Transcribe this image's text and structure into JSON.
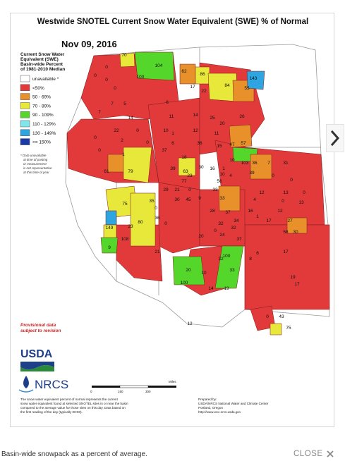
{
  "map": {
    "title": "Westwide SNOTEL Current Snow Water Equivalent (SWE) % of Normal",
    "date": "Nov 09, 2016",
    "legend": {
      "title_lines": [
        "Current Snow Water",
        "Equivalent (SWE)",
        "Basin-wide Percent",
        "of 1981-2010 Median"
      ],
      "items": [
        {
          "label": "unavailable *",
          "color": "#ffffff"
        },
        {
          "label": "<50%",
          "color": "#e23a3a"
        },
        {
          "label": "50 - 69%",
          "color": "#e8902a"
        },
        {
          "label": "70 - 89%",
          "color": "#e8e83a"
        },
        {
          "label": "90 - 109%",
          "color": "#55d62a"
        },
        {
          "label": "110 - 129%",
          "color": "#7fe6ea"
        },
        {
          "label": "130 - 149%",
          "color": "#2ea4e0"
        },
        {
          "label": ">= 150%",
          "color": "#1a3aa8"
        }
      ],
      "footnote_lines": [
        "* Data unavailable",
        "at time of posting",
        "or measurement",
        "is not representative",
        "at this time of year"
      ]
    },
    "provisional_lines": [
      "Provisional data",
      "subject to revision"
    ],
    "logos": {
      "usda": "USDA",
      "nrcs": "NRCS"
    },
    "scale_ticks": [
      "0",
      "150",
      "300"
    ],
    "scale_unit": "Miles",
    "note_lines": [
      "The snow water equivalent percent of normal represents the current",
      "snow water equivalent found at selected SNOTEL sites in or near the basin",
      "compared to the average value for those sites on this day. Data based on",
      "the first reading of the day (typically 00:00)."
    ],
    "prepared_lines": [
      "Prepared by:",
      "USDA/NRCS National Water and Climate Center",
      "Portland, Oregon",
      "http://www.wcc.nrcs.usda.gov"
    ],
    "basin_values": [
      {
        "value": "0",
        "category": "<50%"
      },
      {
        "value": "70",
        "category": "70 - 89%"
      },
      {
        "value": "104",
        "category": "90 - 109%"
      },
      {
        "value": "0",
        "category": "<50%"
      },
      {
        "value": "100",
        "category": "90 - 109%"
      },
      {
        "value": "62",
        "category": "50 - 69%"
      },
      {
        "value": "86",
        "category": "70 - 89%"
      },
      {
        "value": "143",
        "category": "130 - 149%"
      },
      {
        "value": "0",
        "category": "<50%"
      },
      {
        "value": "0",
        "category": "<50%"
      },
      {
        "value": "7",
        "category": "<50%"
      },
      {
        "value": "5",
        "category": "<50%"
      },
      {
        "value": "17",
        "category": "<50%"
      },
      {
        "value": "22",
        "category": "<50%"
      },
      {
        "value": "84",
        "category": "70 - 89%"
      },
      {
        "value": "55",
        "category": "50 - 69%"
      },
      {
        "value": "7",
        "category": "<50%"
      },
      {
        "value": "14",
        "category": "<50%"
      },
      {
        "value": "6",
        "category": "<50%"
      },
      {
        "value": "11",
        "category": "<50%"
      },
      {
        "value": "14",
        "category": "<50%"
      },
      {
        "value": "25",
        "category": "<50%"
      },
      {
        "value": "20",
        "category": "<50%"
      },
      {
        "value": "26",
        "category": "<50%"
      },
      {
        "value": "22",
        "category": "<50%"
      },
      {
        "value": "0",
        "category": "<50%"
      },
      {
        "value": "10",
        "category": "<50%"
      },
      {
        "value": "1",
        "category": "<50%"
      },
      {
        "value": "12",
        "category": "<50%"
      },
      {
        "value": "11",
        "category": "<50%"
      },
      {
        "value": "0",
        "category": "<50%"
      },
      {
        "value": "2",
        "category": "<50%"
      },
      {
        "value": "0",
        "category": "<50%"
      },
      {
        "value": "6",
        "category": "<50%"
      },
      {
        "value": "36",
        "category": "<50%"
      },
      {
        "value": "15",
        "category": "<50%"
      },
      {
        "value": "47",
        "category": "<50%"
      },
      {
        "value": "57",
        "category": "50 - 69%"
      },
      {
        "value": "0",
        "category": "<50%"
      },
      {
        "value": "1",
        "category": "<50%"
      },
      {
        "value": "37",
        "category": "<50%"
      },
      {
        "value": "18",
        "category": "<50%"
      },
      {
        "value": "10",
        "category": "<50%"
      },
      {
        "value": "103",
        "category": "90 - 109%"
      },
      {
        "value": "7",
        "category": "<50%"
      },
      {
        "value": "61",
        "category": "50 - 69%"
      },
      {
        "value": "79",
        "category": "70 - 89%"
      },
      {
        "value": "39",
        "category": "<50%"
      },
      {
        "value": "63",
        "category": "50 - 69%"
      },
      {
        "value": "30",
        "category": "<50%"
      },
      {
        "value": "16",
        "category": "<50%"
      },
      {
        "value": "1",
        "category": "<50%"
      },
      {
        "value": "36",
        "category": "<50%"
      },
      {
        "value": "31",
        "category": "<50%"
      },
      {
        "value": "23",
        "category": "<50%"
      },
      {
        "value": "10",
        "category": "<50%"
      },
      {
        "value": "4",
        "category": "<50%"
      },
      {
        "value": "77",
        "category": "70 - 89%"
      },
      {
        "value": "56",
        "category": "50 - 69%"
      },
      {
        "value": "39",
        "category": "<50%"
      },
      {
        "value": "0",
        "category": "<50%"
      },
      {
        "value": "0",
        "category": "<50%"
      },
      {
        "value": "29",
        "category": "<50%"
      },
      {
        "value": "21",
        "category": "<50%"
      },
      {
        "value": "0",
        "category": "<50%"
      },
      {
        "value": "33",
        "category": "<50%"
      },
      {
        "value": "12",
        "category": "<50%"
      },
      {
        "value": "13",
        "category": "<50%"
      },
      {
        "value": "0",
        "category": "<50%"
      },
      {
        "value": "30",
        "category": "<50%"
      },
      {
        "value": "45",
        "category": "<50%"
      },
      {
        "value": "9",
        "category": "<50%"
      },
      {
        "value": "75",
        "category": "70 - 89%"
      },
      {
        "value": "35",
        "category": "<50%"
      },
      {
        "value": "33",
        "category": "<50%"
      },
      {
        "value": "4",
        "category": "<50%"
      },
      {
        "value": "0",
        "category": "<50%"
      },
      {
        "value": "13",
        "category": "<50%"
      },
      {
        "value": "0",
        "category": "<50%"
      },
      {
        "value": "28",
        "category": "<50%"
      },
      {
        "value": "37",
        "category": "<50%"
      },
      {
        "value": "16",
        "category": "<50%"
      },
      {
        "value": "12",
        "category": "<50%"
      },
      {
        "value": "80",
        "category": "70 - 89%"
      },
      {
        "value": "36",
        "category": "<50%"
      },
      {
        "value": "34",
        "category": "<50%"
      },
      {
        "value": "1",
        "category": "<50%"
      },
      {
        "value": "17",
        "category": "<50%"
      },
      {
        "value": "27",
        "category": "<50%"
      },
      {
        "value": "149",
        "category": "130 - 149%"
      },
      {
        "value": "23",
        "category": "<50%"
      },
      {
        "value": "0",
        "category": "<50%"
      },
      {
        "value": "32",
        "category": "<50%"
      },
      {
        "value": "32",
        "category": "<50%"
      },
      {
        "value": "58",
        "category": "50 - 69%"
      },
      {
        "value": "30",
        "category": "<50%"
      },
      {
        "value": "20",
        "category": "<50%"
      },
      {
        "value": "0",
        "category": "<50%"
      },
      {
        "value": "24",
        "category": "<50%"
      },
      {
        "value": "37",
        "category": "<50%"
      },
      {
        "value": "9",
        "category": "<50%"
      },
      {
        "value": "108",
        "category": "90 - 109%"
      },
      {
        "value": "21",
        "category": "<50%"
      },
      {
        "value": "6",
        "category": "<50%"
      },
      {
        "value": "17",
        "category": "<50%"
      },
      {
        "value": "32",
        "category": "<50%"
      },
      {
        "value": "20",
        "category": "<50%"
      },
      {
        "value": "10",
        "category": "<50%"
      },
      {
        "value": "100",
        "category": "90 - 109%"
      },
      {
        "value": "8",
        "category": "<50%"
      },
      {
        "value": "33",
        "category": "<50%"
      },
      {
        "value": "100",
        "category": "90 - 109%"
      },
      {
        "value": "14",
        "category": "<50%"
      },
      {
        "value": "19",
        "category": "<50%"
      },
      {
        "value": "19",
        "category": "<50%"
      },
      {
        "value": "17",
        "category": "<50%"
      },
      {
        "value": "12",
        "category": "<50%"
      },
      {
        "value": "43",
        "category": "<50%"
      },
      {
        "value": "0",
        "category": "<50%"
      },
      {
        "value": "75",
        "category": "70 - 89%"
      }
    ]
  },
  "caption": "Basin-wide snowpack as a percent of average.",
  "close_label": "CLOSE",
  "icons": {
    "next": "chevron-right-icon",
    "close": "close-icon"
  }
}
